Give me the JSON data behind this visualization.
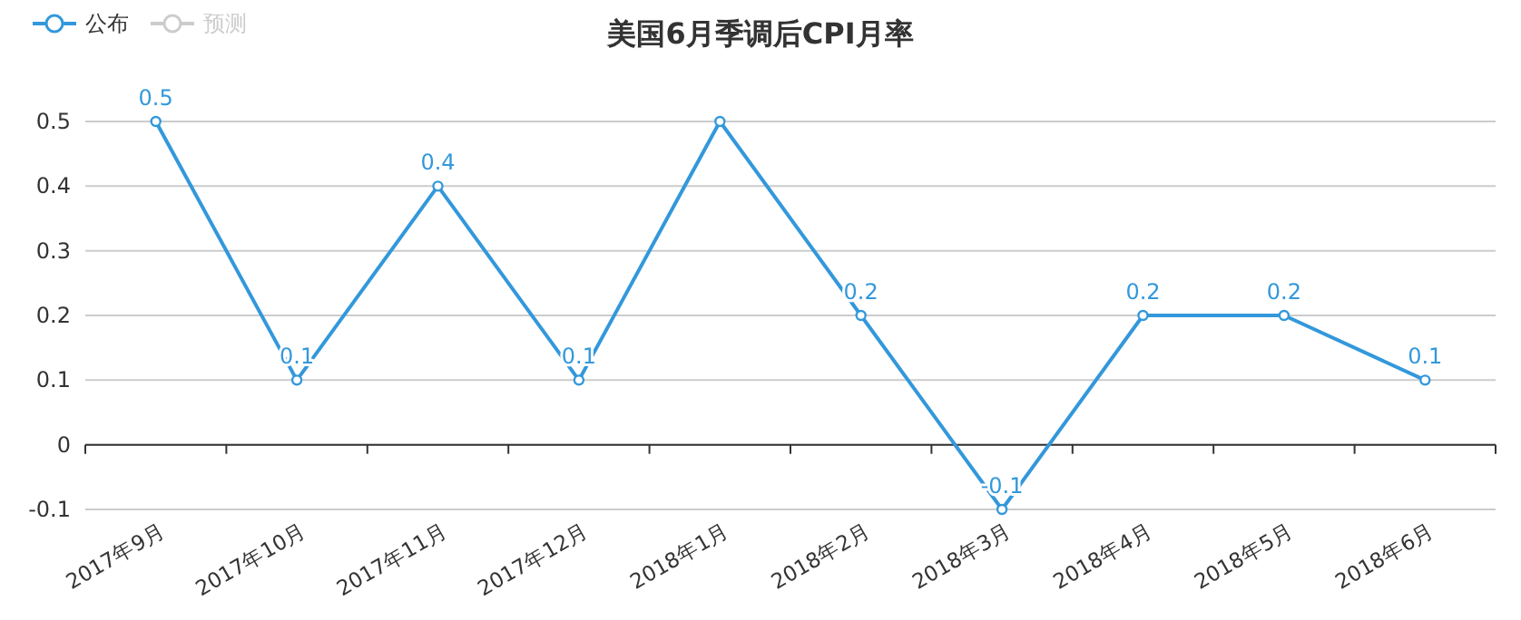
{
  "chart_data": {
    "type": "line",
    "title": "美国6月季调后CPI月率",
    "categories": [
      "2017年9月",
      "2017年10月",
      "2017年11月",
      "2017年12月",
      "2018年1月",
      "2018年2月",
      "2018年3月",
      "2018年4月",
      "2018年5月",
      "2018年6月"
    ],
    "series": [
      {
        "name": "公布",
        "color": "#3398db",
        "values": [
          0.5,
          0.1,
          0.4,
          0.1,
          0.5,
          0.2,
          -0.1,
          0.2,
          0.2,
          0.1
        ],
        "value_labels": [
          "0.5",
          "0.1",
          "0.4",
          "0.1",
          null,
          "0.2",
          "-0.1",
          "0.2",
          "0.2",
          "0.1"
        ]
      },
      {
        "name": "预测",
        "color": "#cccccc",
        "values": [
          null,
          null,
          null,
          null,
          null,
          null,
          null,
          null,
          null,
          null
        ]
      }
    ],
    "ylim": [
      -0.1,
      0.5
    ],
    "yticks": [
      -0.1,
      0,
      0.1,
      0.2,
      0.3,
      0.4,
      0.5
    ],
    "grid": "y",
    "legend": "top left",
    "marker": "circle"
  }
}
